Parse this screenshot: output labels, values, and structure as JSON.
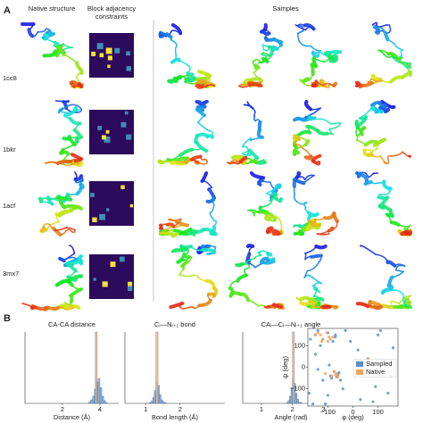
{
  "panel_a": {
    "label": "A",
    "headings": {
      "native": "Native structure",
      "constraints": [
        "Block adjacency",
        "constraints"
      ],
      "samples": "Samples"
    },
    "rows": [
      "1cc8",
      "1bkr",
      "1acf",
      "3mx7"
    ]
  },
  "panel_b": {
    "label": "B"
  },
  "chart_data": [
    {
      "type": "histogram",
      "title": "CA-CA distance",
      "xlabel": "Distance (Å)",
      "xlim": [
        0,
        5
      ],
      "xticks": [
        2,
        4
      ],
      "ylim": [
        0,
        100
      ],
      "series": [
        {
          "color": "#7ba6d8",
          "bins": [
            3.4,
            3.5,
            3.6,
            3.7,
            3.8,
            3.9,
            4.0,
            4.1,
            4.2,
            4.3,
            4.4
          ],
          "values": [
            2,
            5,
            10,
            20,
            30,
            35,
            22,
            10,
            4,
            1
          ]
        },
        {
          "color": "#f2b27a",
          "bins": [
            3.75,
            3.85
          ],
          "values": [
            100
          ]
        }
      ]
    },
    {
      "type": "histogram",
      "title": "Cᵢ—Nᵢ₊₁ bond",
      "xlabel": "Bond length (Å)",
      "xlim": [
        0.4,
        3.3
      ],
      "xticks": [
        1,
        2
      ],
      "ylim": [
        0,
        100
      ],
      "series": [
        {
          "color": "#7ba6d8",
          "bins": [
            1.1,
            1.15,
            1.2,
            1.25,
            1.3,
            1.35,
            1.4,
            1.45,
            1.5,
            1.55,
            1.6
          ],
          "values": [
            1,
            3,
            8,
            18,
            30,
            25,
            12,
            5,
            2,
            1
          ]
        },
        {
          "color": "#f2b27a",
          "bins": [
            1.3,
            1.36
          ],
          "values": [
            100
          ]
        }
      ]
    },
    {
      "type": "histogram",
      "title": "CAᵢ—Cᵢ—Nᵢ₊₁ angle",
      "xlabel": "Angle (rad)",
      "xlim": [
        0.4,
        3.5
      ],
      "xticks": [
        1,
        2,
        3
      ],
      "ylim": [
        0,
        100
      ],
      "series": [
        {
          "color": "#7ba6d8",
          "bins": [
            1.8,
            1.85,
            1.9,
            1.95,
            2.0,
            2.05,
            2.1,
            2.15,
            2.2,
            2.25,
            2.3
          ],
          "values": [
            1,
            4,
            10,
            22,
            34,
            28,
            14,
            6,
            2,
            1
          ]
        },
        {
          "color": "#f2b27a",
          "bins": [
            2.0,
            2.06
          ],
          "values": [
            100
          ]
        }
      ]
    },
    {
      "type": "scatter",
      "xlabel": "φ (deg)",
      "ylabel": "ψ (deg)",
      "xlim": [
        -180,
        180
      ],
      "ylim": [
        -180,
        180
      ],
      "xticks": [
        {
          "value": -100,
          "label": "−100"
        },
        0,
        100
      ],
      "yticks": [
        {
          "value": -100,
          "label": "−100"
        },
        0,
        100
      ],
      "legend": "right",
      "series": [
        {
          "name": "Sampled",
          "color": "#5b8fd0",
          "x": [
            -150,
            -120,
            -100,
            -80,
            -70,
            -140,
            -160,
            -90,
            -65,
            -60,
            -75,
            -85,
            -130,
            -110,
            -95,
            -170,
            -50,
            60,
            70,
            80,
            100,
            140,
            -40,
            20,
            -30,
            120,
            160,
            -120,
            -150,
            -100,
            -70,
            -60,
            -55,
            -140,
            90,
            -175,
            30,
            -10,
            150,
            110
          ],
          "values": [
            150,
            130,
            160,
            120,
            140,
            170,
            -170,
            -40,
            -45,
            -30,
            -20,
            -50,
            100,
            -170,
            10,
            130,
            -60,
            40,
            20,
            -160,
            150,
            -120,
            -100,
            80,
            170,
            30,
            90,
            -60,
            60,
            -130,
            150,
            -35,
            -25,
            -10,
            -90,
            -120,
            -150,
            120,
            -40,
            170
          ]
        },
        {
          "name": "Native",
          "color": "#f0a35e",
          "x": [
            -120,
            -100,
            -130,
            -80,
            -65,
            -70,
            -60,
            -90,
            -140,
            -110,
            -75,
            -150,
            -95,
            -85,
            60,
            -65,
            -125,
            -105
          ],
          "values": [
            130,
            120,
            150,
            140,
            -40,
            -35,
            -45,
            130,
            160,
            -30,
            -20,
            150,
            140,
            -40,
            40,
            -30,
            120,
            160
          ]
        }
      ]
    }
  ]
}
